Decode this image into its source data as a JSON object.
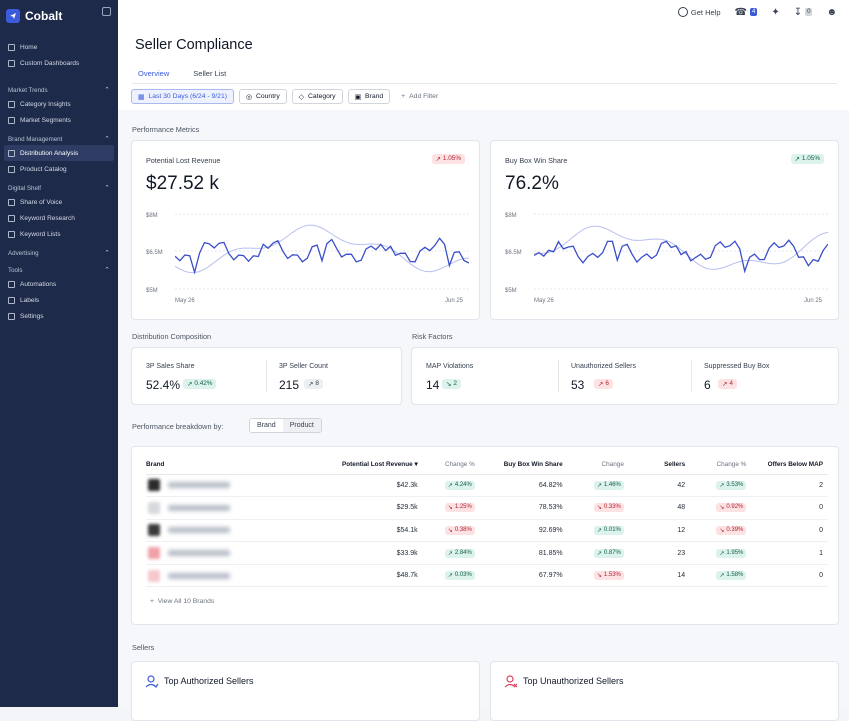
{
  "sidebar": {
    "app": "Cobalt",
    "sections": [
      {
        "title": "",
        "items": [
          "Home",
          "Custom Dashboards"
        ]
      },
      {
        "title": "Market Trends",
        "items": [
          "Category Insights",
          "Market Segments"
        ]
      },
      {
        "title": "Brand Management",
        "items": [
          "Distribution Analysis",
          "Product Catalog"
        ]
      },
      {
        "title": "Digital Shelf",
        "items": [
          "Share of Voice",
          "Keyword Research",
          "Keyword Lists"
        ]
      },
      {
        "title": "Advertising",
        "items": []
      },
      {
        "title": "Tools",
        "items": [
          "Automations",
          "Labels",
          "Settings"
        ]
      }
    ]
  },
  "topbar": {
    "help": "Get Help",
    "notif_count": "4",
    "download_count": "0"
  },
  "page": {
    "title": "Seller Compliance",
    "tabs": [
      "Overview",
      "Seller List"
    ]
  },
  "filters": {
    "date": "Last 30 Days (6/24 - 9/21)",
    "country": "Country",
    "category": "Category",
    "brand": "Brand",
    "add": "Add Filter"
  },
  "performance": {
    "title": "Performance Metrics",
    "cards": [
      {
        "title": "Potential Lost Revenue",
        "value": "$27.52 k",
        "change": "1.05%",
        "dir": "up_red",
        "y_ticks": [
          "$8M",
          "$6.5M",
          "$5M"
        ],
        "x_ticks": [
          "May 26",
          "Jun 25"
        ]
      },
      {
        "title": "Buy Box Win Share",
        "value": "76.2%",
        "change": "1.05%",
        "dir": "up_green",
        "y_ticks": [
          "$8M",
          "$6.5M",
          "$5M"
        ],
        "x_ticks": [
          "May 26",
          "Jun 25"
        ]
      }
    ]
  },
  "distribution": {
    "title": "Distribution Composition",
    "items": [
      {
        "label": "3P Sales Share",
        "value": "52.4%",
        "change": "0.42%"
      },
      {
        "label": "3P Seller Count",
        "value": "215",
        "change": "8"
      }
    ]
  },
  "risk": {
    "title": "Risk Factors",
    "items": [
      {
        "label": "MAP Violations",
        "value": "14",
        "change": "2"
      },
      {
        "label": "Unauthorized Sellers",
        "value": "53",
        "change": "6"
      },
      {
        "label": "Suppressed Buy Box",
        "value": "6",
        "change": "4"
      }
    ]
  },
  "breakdown": {
    "label": "Performance breakdown by:",
    "options": [
      "Brand",
      "Product"
    ],
    "headers": [
      "Brand",
      "Potential Lost Revenue",
      "Change %",
      "Buy Box Win Share",
      "Change",
      "Sellers",
      "Change %",
      "Offers Below MAP"
    ],
    "rows": [
      [
        "$42.3k",
        "4.24%",
        "64.82%",
        "1.46%",
        "42",
        "3.53%",
        "2"
      ],
      [
        "$29.5k",
        "1.25%",
        "78.53%",
        "0.33%",
        "48",
        "0.92%",
        "0"
      ],
      [
        "$54.1k",
        "0.38%",
        "92.69%",
        "0.01%",
        "12",
        "0.39%",
        "0"
      ],
      [
        "$33.9k",
        "2.84%",
        "81.85%",
        "0.87%",
        "23",
        "1.95%",
        "1"
      ],
      [
        "$48.7k",
        "0.03%",
        "67.97%",
        "1.53%",
        "14",
        "1.58%",
        "0"
      ]
    ],
    "row_dirs": [
      [
        "up",
        "up",
        "up"
      ],
      [
        "dn",
        "dn",
        "dn"
      ],
      [
        "dn",
        "up",
        "dn"
      ],
      [
        "up",
        "up",
        "up"
      ],
      [
        "up",
        "dn",
        "up"
      ]
    ],
    "view_all": "View All 10 Brands"
  },
  "sellers": {
    "title": "Sellers",
    "authorized": "Top Authorized Sellers",
    "unauthorized": "Top Unauthorized Sellers"
  },
  "colors": {
    "accent": "#3b5bdb",
    "sidebar": "#1e2a4a",
    "up": "#14604b",
    "down": "#b42333"
  }
}
